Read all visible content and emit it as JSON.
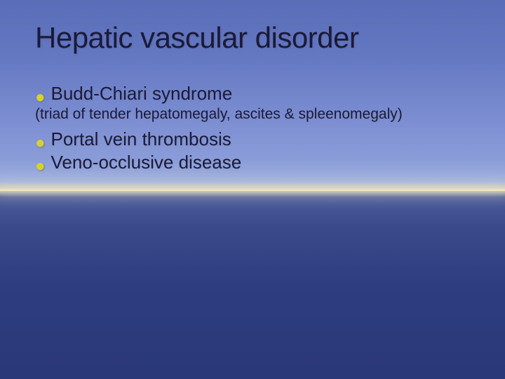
{
  "slide": {
    "title": "Hepatic vascular disorder",
    "items": [
      {
        "text": "Budd-Chiari syndrome"
      },
      {
        "text": "Portal vein thrombosis"
      },
      {
        "text": "Veno-occlusive disease"
      }
    ],
    "subtext": "(triad of tender hepatomegaly, ascites & spleenomegaly)",
    "bullet_color": "#d4d232",
    "text_color": "#1a1a3a",
    "title_fontsize": 42,
    "item_fontsize": 26,
    "subtext_fontsize": 21,
    "background_gradient_top": "#5a6db8",
    "background_gradient_bottom": "#2a3878",
    "horizon_color": "#f0e8c0",
    "font_family": "Verdana"
  }
}
